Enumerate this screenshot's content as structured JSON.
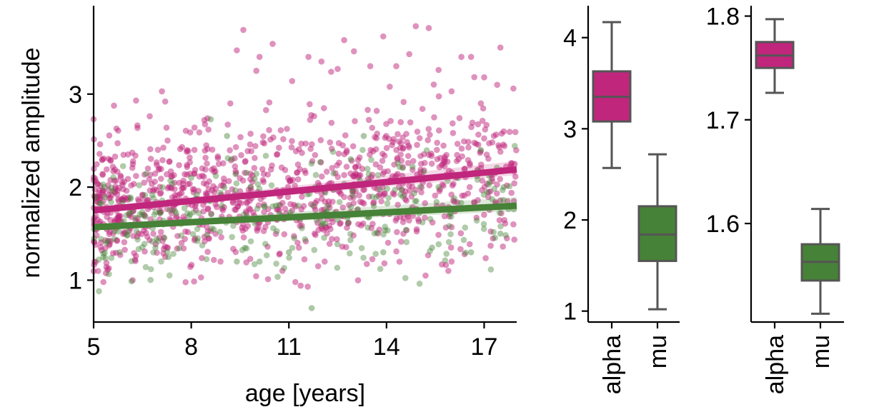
{
  "chart_data": [
    {
      "type": "scatter",
      "xlabel": "age [years]",
      "ylabel": "normalized amplitude",
      "xlim": [
        5,
        18
      ],
      "ylim": [
        0.55,
        3.95
      ],
      "xticks": [
        5,
        8,
        11,
        14,
        17
      ],
      "yticks": [
        1,
        2,
        3
      ],
      "grid": false,
      "legend": "none",
      "series": [
        {
          "color": "#c0267c",
          "point_count": 1050,
          "fit_line": {
            "x": [
              5,
              18
            ],
            "y": [
              1.75,
              2.19
            ]
          }
        },
        {
          "color": "#468237",
          "point_count": 300,
          "fit_line": {
            "x": [
              5,
              18
            ],
            "y": [
              1.57,
              1.8
            ]
          }
        }
      ],
      "points": [
        [
          5.7,
          2.63
        ],
        [
          5.2,
          2.46
        ],
        [
          5.3,
          0.98
        ],
        [
          6.2,
          1.0
        ],
        [
          7.1,
          3.03
        ],
        [
          7.2,
          2.92
        ],
        [
          8.1,
          2.64
        ],
        [
          8.5,
          2.74
        ],
        [
          8.3,
          1.03
        ],
        [
          9.2,
          2.9
        ],
        [
          9.4,
          3.47
        ],
        [
          9.6,
          3.69
        ],
        [
          10.0,
          3.25
        ],
        [
          10.1,
          3.4
        ],
        [
          10.5,
          3.54
        ],
        [
          10.4,
          2.91
        ],
        [
          11.1,
          3.14
        ],
        [
          11.6,
          3.4
        ],
        [
          12.0,
          3.35
        ],
        [
          12.3,
          3.24
        ],
        [
          12.5,
          3.27
        ],
        [
          12.7,
          3.58
        ],
        [
          13.0,
          3.46
        ],
        [
          13.5,
          3.3
        ],
        [
          13.9,
          3.62
        ],
        [
          14.1,
          3.08
        ],
        [
          14.3,
          3.3
        ],
        [
          14.7,
          3.43
        ],
        [
          14.9,
          3.73
        ],
        [
          15.3,
          3.71
        ],
        [
          15.6,
          3.26
        ],
        [
          16.0,
          3.03
        ],
        [
          16.3,
          3.4
        ],
        [
          16.6,
          3.4
        ],
        [
          17.0,
          3.18
        ],
        [
          17.4,
          3.1
        ],
        [
          17.5,
          3.5
        ],
        [
          17.9,
          3.06
        ],
        [
          17.3,
          2.55
        ],
        [
          16.9,
          2.9
        ],
        [
          16.4,
          1.28
        ],
        [
          15.9,
          1.1
        ],
        [
          15.2,
          1.05
        ],
        [
          16.0,
          1.2
        ],
        [
          17.2,
          1.37
        ],
        [
          17.7,
          1.45
        ],
        [
          17.9,
          1.6
        ],
        [
          11.2,
          0.98
        ],
        [
          11.9,
          1.15
        ],
        [
          12.1,
          1.2
        ],
        [
          10.8,
          1.1
        ],
        [
          8.9,
          1.2
        ],
        [
          7.2,
          1.25
        ],
        [
          6.3,
          1.26
        ]
      ],
      "green_points": [
        [
          8.6,
          2.73
        ],
        [
          9.1,
          2.55
        ],
        [
          11.7,
          0.7
        ],
        [
          10.1,
          1.2
        ],
        [
          12.9,
          2.3
        ],
        [
          13.3,
          2.55
        ],
        [
          14.8,
          2.22
        ],
        [
          15.6,
          2.0
        ],
        [
          16.9,
          2.4
        ],
        [
          17.6,
          2.0
        ],
        [
          15.4,
          1.35
        ],
        [
          13.9,
          1.3
        ],
        [
          11.0,
          1.3
        ],
        [
          9.4,
          1.2
        ],
        [
          7.3,
          1.25
        ],
        [
          6.9,
          1.35
        ],
        [
          5.8,
          1.3
        ],
        [
          5.4,
          1.4
        ],
        [
          16.6,
          1.3
        ],
        [
          17.5,
          1.5
        ],
        [
          12.5,
          1.65
        ],
        [
          10.6,
          1.8
        ],
        [
          8.0,
          2.1
        ],
        [
          14.5,
          1.9
        ]
      ]
    },
    {
      "type": "box",
      "categories": [
        "alpha",
        "mu"
      ],
      "ylim": [
        0.88,
        4.35
      ],
      "yticks": [
        1,
        2,
        3,
        4
      ],
      "boxes": [
        {
          "color": "#c0267c",
          "whisker_low": 2.57,
          "q1": 3.08,
          "median": 3.35,
          "q3": 3.63,
          "whisker_high": 4.17
        },
        {
          "color": "#468237",
          "whisker_low": 1.02,
          "q1": 1.55,
          "median": 1.84,
          "q3": 2.15,
          "whisker_high": 2.72
        }
      ]
    },
    {
      "type": "box",
      "categories": [
        "alpha",
        "mu"
      ],
      "ylim": [
        1.505,
        1.81
      ],
      "yticks": [
        1.6,
        1.7,
        1.8
      ],
      "boxes": [
        {
          "color": "#c0267c",
          "whisker_low": 1.726,
          "q1": 1.75,
          "median": 1.762,
          "q3": 1.775,
          "whisker_high": 1.797
        },
        {
          "color": "#468237",
          "whisker_low": 1.513,
          "q1": 1.545,
          "median": 1.563,
          "q3": 1.58,
          "whisker_high": 1.614
        }
      ]
    }
  ]
}
